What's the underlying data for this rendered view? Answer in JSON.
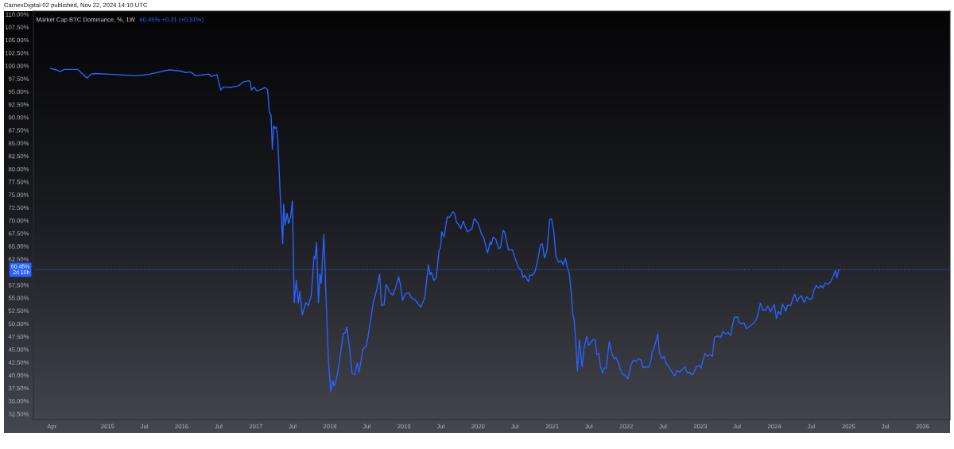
{
  "chart_data": {
    "type": "line",
    "title": "Market Cap BTC Dominance, %, 1W",
    "subtitle": "60.45% +0.31 (+0.51%)",
    "annotations": [
      "CarnexDigital-02 published, Nov 22, 2024 14:10 UTC"
    ],
    "color": "#2962ff",
    "x": [
      "2014-03-25",
      "2014-04-23",
      "2014-05-13",
      "2014-06-02",
      "2014-08-06",
      "2014-09-22",
      "2014-10-11",
      "2014-11-01",
      "2015-05-14",
      "2015-06-22",
      "2015-07-18",
      "2015-10-05",
      "2015-11-01",
      "2015-12-24",
      "2016-01-19",
      "2016-02-14",
      "2016-03-10",
      "2016-04-05",
      "2016-05-14",
      "2016-05-27",
      "2016-06-23",
      "2016-07-12",
      "2016-07-25",
      "2016-08-27",
      "2016-10-06",
      "2016-11-02",
      "2016-11-27",
      "2016-12-04",
      "2016-12-10",
      "2016-12-23",
      "2017-01-06",
      "2017-02-15",
      "2017-02-28",
      "2017-03-08",
      "2017-03-17",
      "2017-03-23",
      "2017-03-30",
      "2017-04-06",
      "2017-04-12",
      "2017-04-19",
      "2017-04-30",
      "2017-05-13",
      "2017-05-18",
      "2017-05-25",
      "2017-06-04",
      "2017-06-11",
      "2017-06-21",
      "2017-06-30",
      "2017-07-09",
      "2017-07-19",
      "2017-07-29",
      "2017-08-05",
      "2017-08-18",
      "2017-09-04",
      "2017-09-17",
      "2017-10-01",
      "2017-10-15",
      "2017-10-20",
      "2017-10-27",
      "2017-11-05",
      "2017-11-13",
      "2017-11-19",
      "2017-12-02",
      "2017-12-11",
      "2017-12-24",
      "2018-01-05",
      "2018-01-15",
      "2018-01-22",
      "2018-02-02",
      "2018-02-14",
      "2018-02-26",
      "2018-03-08",
      "2018-03-18",
      "2018-03-25",
      "2018-04-07",
      "2018-04-20",
      "2018-05-03",
      "2018-05-16",
      "2018-05-25",
      "2018-06-12",
      "2018-07-01",
      "2018-07-20",
      "2018-08-03",
      "2018-08-19",
      "2018-09-03",
      "2018-09-12",
      "2018-09-25",
      "2018-10-05",
      "2018-10-21",
      "2018-11-06",
      "2018-11-19",
      "2018-12-06",
      "2018-12-15",
      "2018-12-25",
      "2019-01-08",
      "2019-01-25",
      "2019-02-07",
      "2019-02-23",
      "2019-03-25",
      "2019-04-14",
      "2019-05-01",
      "2019-05-10",
      "2019-05-16",
      "2019-05-28",
      "2019-06-09",
      "2019-06-23",
      "2019-07-01",
      "2019-07-06",
      "2019-07-18",
      "2019-08-02",
      "2019-08-13",
      "2019-08-30",
      "2019-09-07",
      "2019-09-17",
      "2019-09-26",
      "2019-10-08",
      "2019-10-21",
      "2019-10-27",
      "2019-11-10",
      "2019-12-02",
      "2019-12-14",
      "2020-01-02",
      "2020-01-19",
      "2020-01-28",
      "2020-02-17",
      "2020-03-01",
      "2020-03-06",
      "2020-03-16",
      "2020-03-29",
      "2020-04-12",
      "2020-04-21",
      "2020-05-04",
      "2020-05-11",
      "2020-05-30",
      "2020-06-19",
      "2020-07-06",
      "2020-07-19",
      "2020-08-01",
      "2020-08-10",
      "2020-08-17",
      "2020-08-26",
      "2020-09-06",
      "2020-09-12",
      "2020-09-25",
      "2020-10-08",
      "2020-10-21",
      "2020-11-04",
      "2020-11-13",
      "2020-11-24",
      "2020-12-06",
      "2020-12-19",
      "2020-12-29",
      "2021-01-09",
      "2021-01-19",
      "2021-02-02",
      "2021-02-15",
      "2021-02-24",
      "2021-03-07",
      "2021-03-16",
      "2021-03-27",
      "2021-04-07",
      "2021-04-11",
      "2021-04-19",
      "2021-04-26",
      "2021-05-05",
      "2021-05-15",
      "2021-05-28",
      "2021-06-07",
      "2021-06-20",
      "2021-06-29",
      "2021-07-09",
      "2021-07-23",
      "2021-08-01",
      "2021-08-09",
      "2021-08-18",
      "2021-08-27",
      "2021-09-07",
      "2021-09-14",
      "2021-09-24",
      "2021-10-09",
      "2021-10-22",
      "2021-11-02",
      "2021-11-11",
      "2021-11-24",
      "2021-12-03",
      "2021-12-16",
      "2021-12-27",
      "2022-01-10",
      "2022-01-23",
      "2022-02-05",
      "2022-02-18",
      "2022-03-01",
      "2022-03-14",
      "2022-03-24",
      "2022-04-09",
      "2022-04-23",
      "2022-05-03",
      "2022-05-08",
      "2022-05-16",
      "2022-05-25",
      "2022-06-05",
      "2022-06-14",
      "2022-06-27",
      "2022-07-06",
      "2022-07-16",
      "2022-07-30",
      "2022-08-15",
      "2022-08-28",
      "2022-09-08",
      "2022-09-21",
      "2022-10-04",
      "2022-10-17",
      "2022-10-30",
      "2022-11-10",
      "2022-11-19",
      "2022-11-29",
      "2022-12-12",
      "2022-12-25",
      "2023-01-04",
      "2023-01-13",
      "2023-01-24",
      "2023-02-03",
      "2023-02-16",
      "2023-03-02",
      "2023-03-12",
      "2023-03-28",
      "2023-04-11",
      "2023-04-23",
      "2023-05-06",
      "2023-05-19",
      "2023-05-30",
      "2023-06-08",
      "2023-06-18",
      "2023-06-28",
      "2023-07-04",
      "2023-07-11",
      "2023-07-24",
      "2023-08-04",
      "2023-08-16",
      "2023-09-02",
      "2023-09-18",
      "2023-10-01",
      "2023-10-11",
      "2023-10-24",
      "2023-11-06",
      "2023-11-19",
      "2023-11-30",
      "2023-12-13",
      "2023-12-22",
      "2024-01-01",
      "2024-01-11",
      "2024-01-21",
      "2024-02-01",
      "2024-02-09",
      "2024-02-19",
      "2024-02-26",
      "2024-03-06",
      "2024-03-22",
      "2024-04-01",
      "2024-04-11",
      "2024-04-22",
      "2024-05-02",
      "2024-05-14",
      "2024-05-27",
      "2024-06-09",
      "2024-06-22",
      "2024-07-05",
      "2024-07-14",
      "2024-07-25",
      "2024-08-07",
      "2024-08-18",
      "2024-08-27",
      "2024-09-09",
      "2024-09-22",
      "2024-10-05",
      "2024-10-18",
      "2024-10-28",
      "2024-11-04",
      "2024-11-13",
      "2024-11-18"
    ],
    "values": [
      99.5,
      99.2,
      98.9,
      99.3,
      99.3,
      97.6,
      98.4,
      98.5,
      98.1,
      98.2,
      98.3,
      99.0,
      99.2,
      99.0,
      98.7,
      98.8,
      98.1,
      98.2,
      98.4,
      97.9,
      98.3,
      95.3,
      95.9,
      95.8,
      96.1,
      96.9,
      97.1,
      96.9,
      95.3,
      95.9,
      95.1,
      95.8,
      95.3,
      91.0,
      90.4,
      83.8,
      88.4,
      87.9,
      88.1,
      85.6,
      75.8,
      65.5,
      73.2,
      69.1,
      71.4,
      69.4,
      70.7,
      73.8,
      54.0,
      58.4,
      54.0,
      56.3,
      51.7,
      54.1,
      53.5,
      55.6,
      63.1,
      62.6,
      65.8,
      54.0,
      59.6,
      57.8,
      67.3,
      56.9,
      43.2,
      36.8,
      39.0,
      37.9,
      39.2,
      41.9,
      45.3,
      48.1,
      48.3,
      49.4,
      45.5,
      40.4,
      40.1,
      42.4,
      40.6,
      45.0,
      45.8,
      50.6,
      54.2,
      56.5,
      59.6,
      53.5,
      53.7,
      57.6,
      56.3,
      55.5,
      56.8,
      59.1,
      57.3,
      54.5,
      55.8,
      56.0,
      55.0,
      54.7,
      53.2,
      55.1,
      61.4,
      59.5,
      60.0,
      58.4,
      58.9,
      64.2,
      64.8,
      67.8,
      66.8,
      70.7,
      70.6,
      71.7,
      71.4,
      69.7,
      69.3,
      68.4,
      69.9,
      69.1,
      67.8,
      68.4,
      70.4,
      69.4,
      67.3,
      66.8,
      63.7,
      65.8,
      65.3,
      66.8,
      66.3,
      64.5,
      64.8,
      68.1,
      67.8,
      64.3,
      64.3,
      62.2,
      60.9,
      60.4,
      58.9,
      59.4,
      58.9,
      58.1,
      59.4,
      59.4,
      60.1,
      62.2,
      65.3,
      65.5,
      62.7,
      64.2,
      70.2,
      70.3,
      67.8,
      63.1,
      61.9,
      62.2,
      61.4,
      62.7,
      61.0,
      59.6,
      54.7,
      52.2,
      50.6,
      47.0,
      40.8,
      46.8,
      41.6,
      45.3,
      47.6,
      45.8,
      46.3,
      47.0,
      46.8,
      44.0,
      44.2,
      41.6,
      40.4,
      41.4,
      41.4,
      46.5,
      44.2,
      43.2,
      43.5,
      42.4,
      41.1,
      40.1,
      40.0,
      39.3,
      41.9,
      42.9,
      42.7,
      43.2,
      43.0,
      41.5,
      41.6,
      41.6,
      42.9,
      44.5,
      45.0,
      46.3,
      48.0,
      44.2,
      43.2,
      43.7,
      42.4,
      41.6,
      40.6,
      39.9,
      40.9,
      40.6,
      41.1,
      41.6,
      40.4,
      40.6,
      40.0,
      40.4,
      41.6,
      41.9,
      41.4,
      42.7,
      44.2,
      43.7,
      44.0,
      43.7,
      47.4,
      47.6,
      47.3,
      48.5,
      48.0,
      48.3,
      47.7,
      49.6,
      51.3,
      51.2,
      51.4,
      50.2,
      50.0,
      50.2,
      49.0,
      49.5,
      50.0,
      50.6,
      51.7,
      54.0,
      52.6,
      52.7,
      53.4,
      52.3,
      53.0,
      53.7,
      51.0,
      52.4,
      51.7,
      53.8,
      53.2,
      52.4,
      53.6,
      53.5,
      54.9,
      55.7,
      54.3,
      55.0,
      55.4,
      54.1,
      55.2,
      54.7,
      54.9,
      56.5,
      57.4,
      56.9,
      57.4,
      56.9,
      57.9,
      57.6,
      58.2,
      59.3,
      60.3,
      58.9,
      60.4,
      60.45
    ],
    "xlim": [
      "2013-12-31",
      "2026-05-16"
    ],
    "ylim": [
      31.4,
      110.6
    ],
    "xticks": [
      {
        "value": "2014-04-01",
        "label": "Apr"
      },
      {
        "value": "2015-01-01",
        "label": "2015"
      },
      {
        "value": "2015-07-01",
        "label": "Jul"
      },
      {
        "value": "2016-01-01",
        "label": "2016"
      },
      {
        "value": "2016-07-01",
        "label": "Jul"
      },
      {
        "value": "2017-01-01",
        "label": "2017"
      },
      {
        "value": "2017-07-01",
        "label": "Jul"
      },
      {
        "value": "2018-01-01",
        "label": "2018"
      },
      {
        "value": "2018-07-01",
        "label": "Jul"
      },
      {
        "value": "2019-01-01",
        "label": "2019"
      },
      {
        "value": "2019-07-01",
        "label": "Jul"
      },
      {
        "value": "2020-01-01",
        "label": "2020"
      },
      {
        "value": "2020-07-01",
        "label": "Jul"
      },
      {
        "value": "2021-01-01",
        "label": "2021"
      },
      {
        "value": "2021-07-01",
        "label": "Jul"
      },
      {
        "value": "2022-01-01",
        "label": "2022"
      },
      {
        "value": "2022-07-01",
        "label": "Jul"
      },
      {
        "value": "2023-01-01",
        "label": "2023"
      },
      {
        "value": "2023-07-01",
        "label": "Jul"
      },
      {
        "value": "2024-01-01",
        "label": "2024"
      },
      {
        "value": "2024-07-01",
        "label": "Jul"
      },
      {
        "value": "2025-01-01",
        "label": "2025"
      },
      {
        "value": "2025-07-01",
        "label": "Jul"
      },
      {
        "value": "2026-01-01",
        "label": "2026"
      }
    ],
    "yticks": [
      {
        "value": 32.5,
        "label": "32.50%"
      },
      {
        "value": 35,
        "label": "35.00%"
      },
      {
        "value": 37.5,
        "label": "37.50%"
      },
      {
        "value": 40,
        "label": "40.00%"
      },
      {
        "value": 42.5,
        "label": "42.50%"
      },
      {
        "value": 45,
        "label": "45.00%"
      },
      {
        "value": 47.5,
        "label": "47.50%"
      },
      {
        "value": 50,
        "label": "50.00%"
      },
      {
        "value": 52.5,
        "label": "52.50%"
      },
      {
        "value": 55,
        "label": "55.00%"
      },
      {
        "value": 57.5,
        "label": "57.50%"
      },
      {
        "value": 62.5,
        "label": "62.50%"
      },
      {
        "value": 65,
        "label": "65.00%"
      },
      {
        "value": 67.5,
        "label": "67.50%"
      },
      {
        "value": 70,
        "label": "70.00%"
      },
      {
        "value": 72.5,
        "label": "72.50%"
      },
      {
        "value": 75,
        "label": "75.00%"
      },
      {
        "value": 77.5,
        "label": "77.50%"
      },
      {
        "value": 80,
        "label": "80.00%"
      },
      {
        "value": 82.5,
        "label": "82.50%"
      },
      {
        "value": 85,
        "label": "85.00%"
      },
      {
        "value": 87.5,
        "label": "87.50%"
      },
      {
        "value": 90,
        "label": "90.00%"
      },
      {
        "value": 92.5,
        "label": "92.50%"
      },
      {
        "value": 95,
        "label": "95.00%"
      },
      {
        "value": 97.5,
        "label": "97.50%"
      },
      {
        "value": 100,
        "label": "100.00%"
      },
      {
        "value": 102.5,
        "label": "102.50%"
      },
      {
        "value": 105,
        "label": "105.00%"
      },
      {
        "value": 107.5,
        "label": "107.50%"
      },
      {
        "value": 110,
        "label": "110.00%"
      }
    ],
    "ref_lines": [
      {
        "axis": "y",
        "value": 60.45,
        "label": "60.45%\n2d 10h",
        "color": "#2962ff",
        "line_style": "dotted"
      }
    ],
    "grid": false
  }
}
